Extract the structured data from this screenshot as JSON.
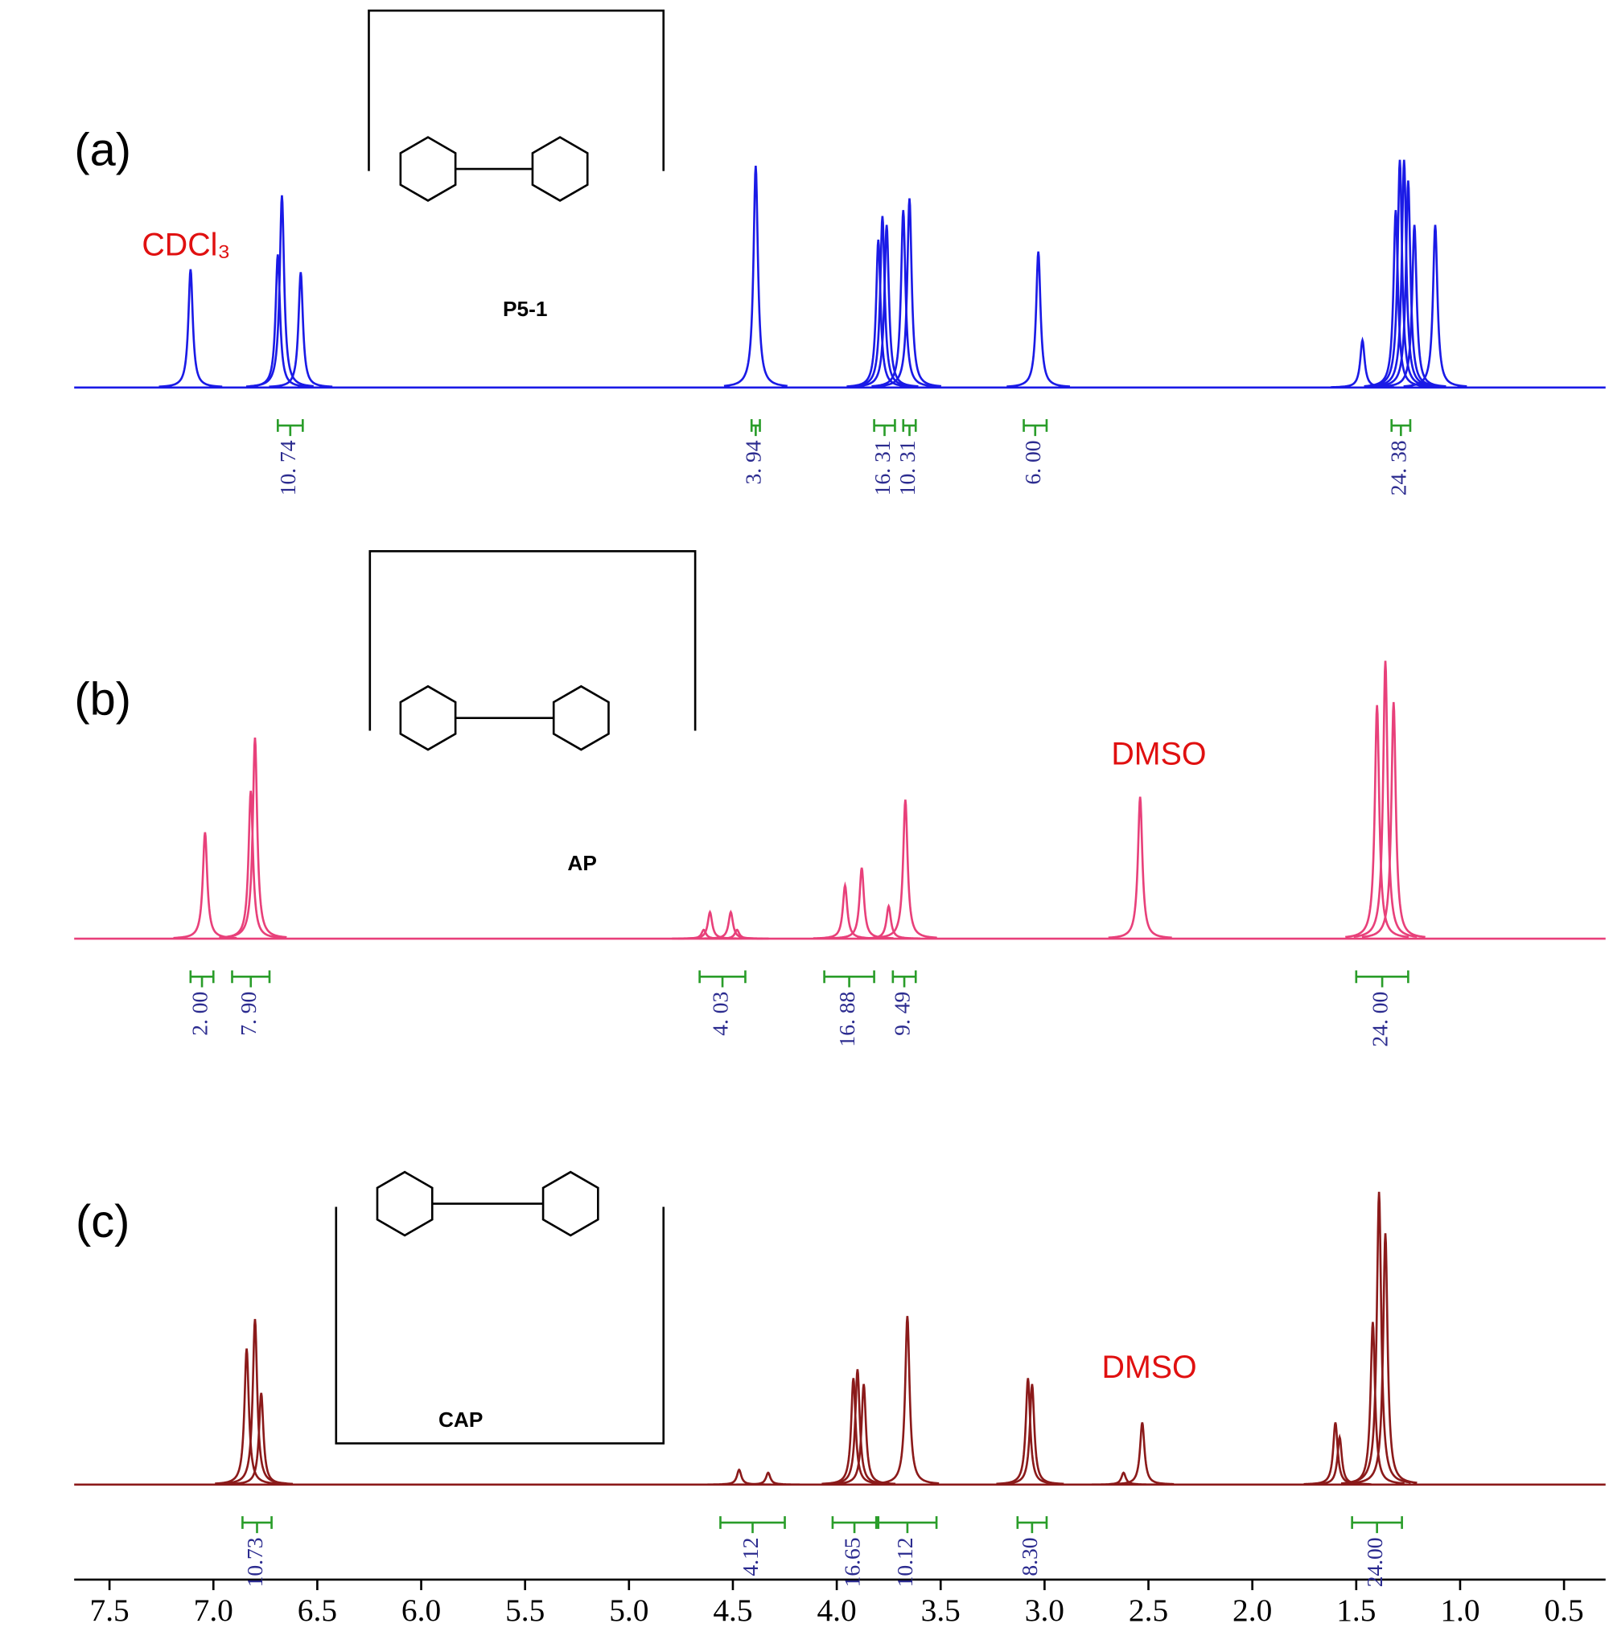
{
  "chart_data": {
    "type": "line",
    "xlim": [
      7.67,
      0.3
    ],
    "xticks": [
      7.5,
      {
        "value": 7,
        "label": "7.0"
      },
      6.5,
      {
        "value": 6,
        "label": "6.0"
      },
      5.5,
      {
        "value": 5,
        "label": "5.0"
      },
      4.5,
      {
        "value": 4,
        "label": "4.0"
      },
      3.5,
      {
        "value": 3,
        "label": "3.0"
      },
      2.5,
      {
        "value": 2,
        "label": "2.0"
      },
      1.5,
      {
        "value": 1,
        "label": "1.0"
      },
      0.5
    ],
    "ylim": [
      0,
      100
    ],
    "series": [
      {
        "name": "(a)",
        "color": "#1a1ae6",
        "compound": "P5-1",
        "solvent": "CDCl₃",
        "x": [
          7.11,
          6.69,
          6.67,
          6.58,
          4.39,
          3.8,
          3.78,
          3.76,
          3.68,
          3.65,
          3.03,
          1.47,
          1.31,
          1.29,
          1.27,
          1.25,
          1.22,
          1.12
        ],
        "values": [
          40,
          45,
          65,
          39,
          75,
          50,
          58,
          55,
          60,
          64,
          46,
          16,
          60,
          77,
          77,
          70,
          55,
          55
        ],
        "integrals": {
          "ranges": [
            [
              6.69,
              6.57
            ],
            [
              4.41,
              4.37
            ],
            [
              3.82,
              3.72
            ],
            [
              3.68,
              3.62
            ],
            [
              3.1,
              2.99
            ],
            [
              1.33,
              1.24
            ]
          ],
          "values": [
            10.74,
            3.94,
            16.31,
            10.31,
            6,
            24.38
          ],
          "value_labels": [
            "10. 74",
            "3. 94",
            "16. 31",
            "10. 31",
            "6. 00",
            "24. 38"
          ]
        }
      },
      {
        "name": "(b)",
        "color": "#e8407a",
        "compound": "AP",
        "solvent": "DMSO",
        "x": [
          7.04,
          6.82,
          6.8,
          4.64,
          4.61,
          4.51,
          4.48,
          3.96,
          3.88,
          3.75,
          3.67,
          2.54,
          1.4,
          1.36,
          1.32
        ],
        "values": [
          36,
          50,
          68,
          3,
          9,
          9,
          3,
          18,
          24,
          11,
          47,
          48,
          79,
          94,
          80
        ],
        "integrals": {
          "ranges": [
            [
              7.11,
              7.0
            ],
            [
              6.91,
              6.73
            ],
            [
              4.66,
              4.44
            ],
            [
              4.06,
              3.82
            ],
            [
              3.73,
              3.62
            ],
            [
              1.5,
              1.25
            ]
          ],
          "values": [
            2,
            7.9,
            4.03,
            16.88,
            9.49,
            24
          ],
          "value_labels": [
            "2. 00",
            "7. 90",
            "4. 03",
            "16. 88",
            "9. 49",
            "24. 00"
          ]
        }
      },
      {
        "name": "(c)",
        "color": "#8b1a1a",
        "compound": "CAP",
        "solvent": "DMSO",
        "x": [
          6.84,
          6.8,
          6.77,
          4.47,
          4.33,
          3.92,
          3.9,
          3.87,
          3.66,
          3.08,
          3.06,
          2.62,
          2.53,
          1.6,
          1.58,
          1.42,
          1.39,
          1.36
        ],
        "values": [
          46,
          56,
          31,
          5,
          4,
          36,
          39,
          34,
          57,
          36,
          34,
          4,
          21,
          21,
          16,
          55,
          99,
          85
        ],
        "integrals": {
          "ranges": [
            [
              6.86,
              6.72
            ],
            [
              4.56,
              4.25
            ],
            [
              4.02,
              3.81
            ],
            [
              3.8,
              3.52
            ],
            [
              3.13,
              2.99
            ],
            [
              1.52,
              1.28
            ]
          ],
          "values": [
            10.73,
            4.12,
            16.65,
            10.12,
            8.3,
            24
          ],
          "value_labels": [
            "10.73",
            "4.12",
            "16.65",
            "10.12",
            "8.30",
            "24.00"
          ]
        }
      }
    ]
  }
}
